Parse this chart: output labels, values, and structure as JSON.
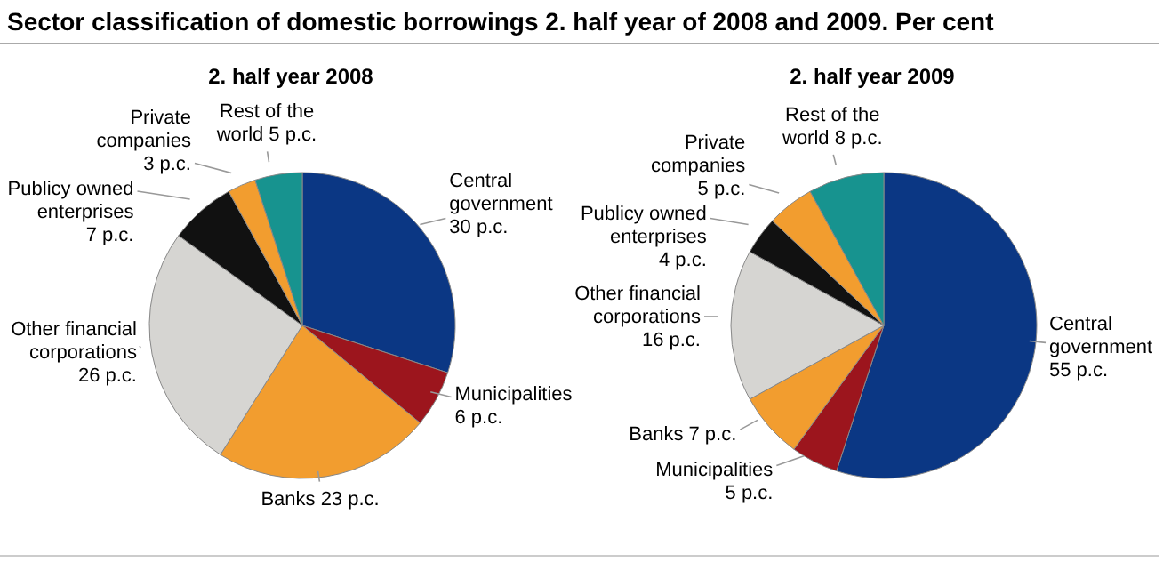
{
  "chart_data": [
    {
      "type": "pie",
      "title": "Sector classification of domestic borrowings 2. half year of 2008 and 2009. Per cent",
      "subtitle": "2. half year 2008",
      "categories": [
        "Central government",
        "Municipalities",
        "Banks",
        "Other financial corporations",
        "Publicy owned enterprises",
        "Private companies",
        "Rest of the world"
      ],
      "values": [
        30,
        6,
        23,
        26,
        7,
        3,
        5
      ],
      "colors": [
        "#0b3784",
        "#9c151d",
        "#f29d2f",
        "#d6d5d2",
        "#111111",
        "#f29d2f",
        "#17938f"
      ],
      "value_labels": [
        "30 p.c.",
        "6 p.c.",
        "23 p.c.",
        "26 p.c.",
        "7 p.c.",
        "3 p.c.",
        "5 p.c."
      ],
      "legend": false
    },
    {
      "type": "pie",
      "subtitle": "2. half year 2009",
      "categories": [
        "Central government",
        "Municipalities",
        "Banks",
        "Other financial corporations",
        "Publicy owned enterprises",
        "Private companies",
        "Rest of the world"
      ],
      "values": [
        55,
        5,
        7,
        16,
        4,
        5,
        8
      ],
      "colors": [
        "#0b3784",
        "#9c151d",
        "#f29d2f",
        "#d6d5d2",
        "#111111",
        "#f29d2f",
        "#17938f"
      ],
      "value_labels": [
        "55 p.c.",
        "5 p.c.",
        "7 p.c.",
        "16 p.c.",
        "4 p.c.",
        "5 p.c.",
        "8 p.c."
      ],
      "legend": false
    }
  ]
}
